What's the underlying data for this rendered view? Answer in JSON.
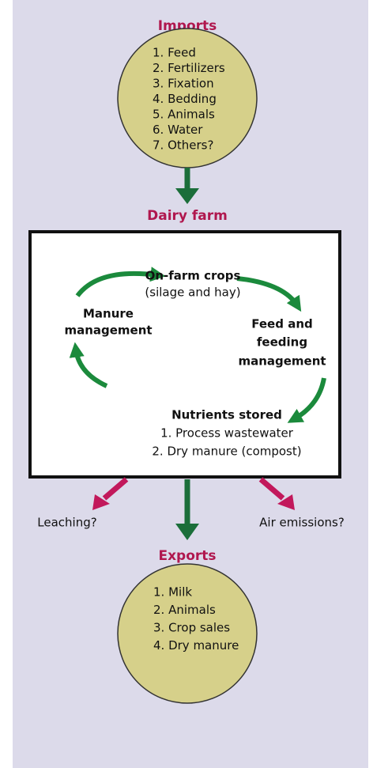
{
  "imports": {
    "title": "Imports",
    "items": [
      "1. Feed",
      "2. Fertilizers",
      "3. Fixation",
      "4. Bedding",
      "5. Animals",
      "6. Water",
      "7. Others?"
    ]
  },
  "dairy_farm": {
    "title": "Dairy farm",
    "crops": {
      "label": "On-farm crops",
      "detail": "(silage and hay)"
    },
    "feeding": {
      "label": [
        "Feed and",
        "feeding",
        "management"
      ]
    },
    "nutrients": {
      "label": "Nutrients stored",
      "items": [
        "1. Process wastewater",
        "2. Dry manure (compost)"
      ]
    },
    "manure": {
      "label": [
        "Manure",
        "management"
      ]
    }
  },
  "losses": {
    "leaching": "Leaching?",
    "air": "Air emissions?"
  },
  "exports": {
    "title": "Exports",
    "items": [
      "1. Milk",
      "2. Animals",
      "3. Crop sales",
      "4. Dry manure"
    ]
  }
}
